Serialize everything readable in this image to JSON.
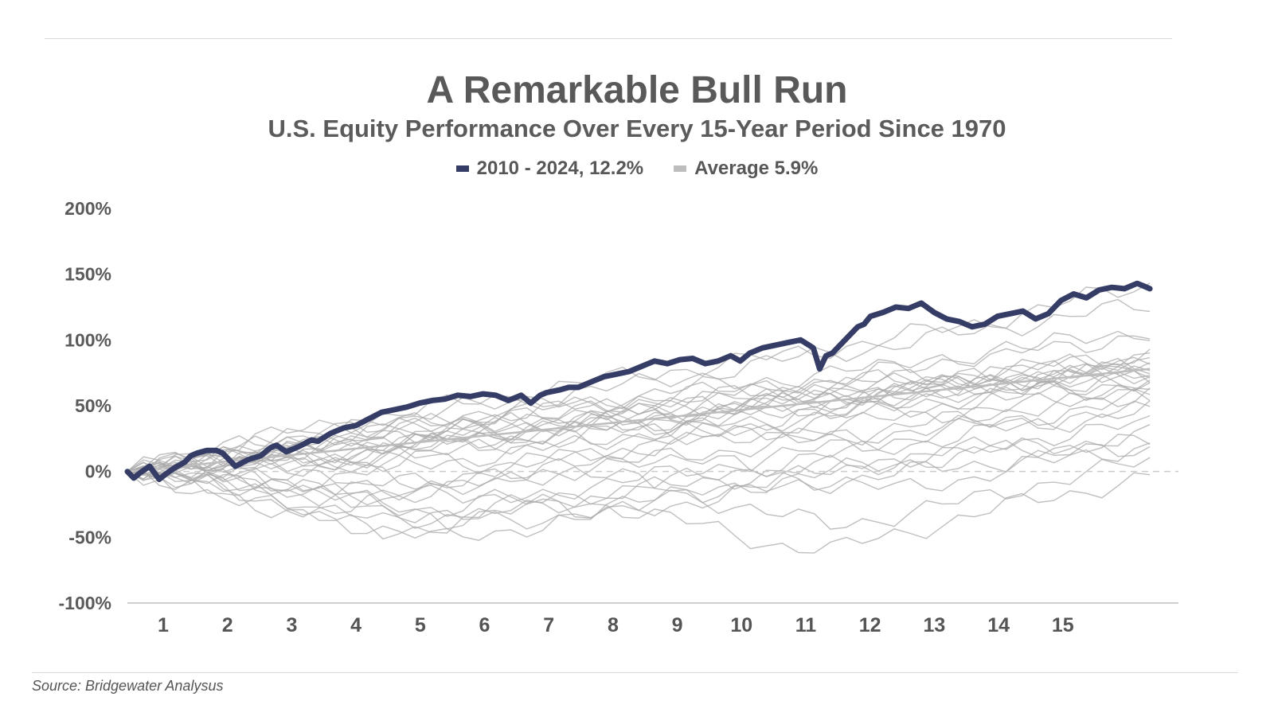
{
  "colors": {
    "highlight": "#353d66",
    "average": "#bdbdbd",
    "paths": "#a9a9a9",
    "axis": "#cfcfcf"
  },
  "footer": {
    "source": "Source: Bridgewater Analysus"
  },
  "chart_data": {
    "type": "line",
    "title": "A Remarkable Bull Run",
    "subtitle": "U.S. Equity Performance Over Every 15-Year Period Since 1970",
    "legend": [
      {
        "label": "2010 - 2024, 12.2%",
        "color": "#353d66"
      },
      {
        "label": "Average 5.9%",
        "color": "#bdbdbd"
      }
    ],
    "legend_position": "top-center",
    "ylim": [
      -100,
      200
    ],
    "yticks": [
      -100,
      -50,
      0,
      50,
      100,
      150,
      200
    ],
    "ytick_labels": [
      "-100%",
      "-50%",
      "0%",
      "50%",
      "100%",
      "150%",
      "200%"
    ],
    "xlim": [
      0,
      16.5
    ],
    "xticks": [
      1,
      2,
      3,
      4,
      5,
      6,
      7,
      8,
      9,
      10,
      11,
      12,
      13,
      14,
      15
    ],
    "xtick_labels": [
      "1",
      "2",
      "3",
      "4",
      "5",
      "6",
      "7",
      "8",
      "9",
      "10",
      11,
      "12",
      "13",
      "14",
      "15"
    ],
    "grid": false,
    "zero_line": "dashed",
    "highlight_series": {
      "name": "2010 - 2024, 12.2%",
      "x": [
        0,
        0.1,
        0.2,
        0.35,
        0.5,
        0.6,
        0.75,
        0.9,
        1.0,
        1.1,
        1.25,
        1.4,
        1.5,
        1.7,
        1.9,
        2.1,
        2.25,
        2.35,
        2.5,
        2.7,
        2.9,
        3.0,
        3.2,
        3.4,
        3.6,
        3.8,
        4.0,
        4.2,
        4.4,
        4.6,
        4.8,
        5.0,
        5.2,
        5.4,
        5.6,
        5.8,
        6.0,
        6.2,
        6.35,
        6.5,
        6.6,
        6.8,
        6.95,
        7.1,
        7.3,
        7.5,
        7.7,
        7.9,
        8.1,
        8.3,
        8.5,
        8.7,
        8.9,
        9.1,
        9.3,
        9.5,
        9.65,
        9.8,
        10.0,
        10.2,
        10.4,
        10.6,
        10.8,
        10.9,
        11.0,
        11.1,
        11.3,
        11.5,
        11.6,
        11.7,
        11.9,
        12.1,
        12.3,
        12.5,
        12.7,
        12.9,
        13.1,
        13.3,
        13.5,
        13.7,
        13.9,
        14.1,
        14.3,
        14.5,
        14.7,
        14.9,
        15.1,
        15.3,
        15.5,
        15.7,
        15.9,
        16.0,
        16.1
      ],
      "y": [
        0,
        -5,
        -1,
        4,
        -6,
        -2,
        3,
        7,
        12,
        14,
        16,
        16,
        14,
        4,
        9,
        12,
        18,
        20,
        15,
        19,
        24,
        23,
        29,
        33,
        35,
        40,
        45,
        47,
        49,
        52,
        54,
        55,
        58,
        57,
        59,
        58,
        54,
        58,
        52,
        58,
        60,
        62,
        64,
        64,
        68,
        72,
        74,
        76,
        80,
        84,
        82,
        85,
        86,
        82,
        84,
        88,
        84,
        90,
        94,
        96,
        98,
        100,
        94,
        78,
        88,
        90,
        100,
        110,
        112,
        118,
        121,
        125,
        124,
        128,
        121,
        116,
        114,
        110,
        112,
        118,
        120,
        122,
        116,
        120,
        130,
        135,
        132,
        138,
        140,
        139,
        143,
        141,
        139
      ]
    },
    "background_series_note": "",
    "background_series": [
      {
        "y": [
          0,
          6,
          14,
          20,
          24,
          28,
          34,
          40,
          44,
          50,
          54,
          60,
          64,
          70,
          72,
          76,
          80
        ]
      },
      {
        "y": [
          0,
          8,
          10,
          16,
          22,
          26,
          30,
          36,
          40,
          46,
          50,
          56,
          62,
          66,
          70,
          72,
          74
        ]
      },
      {
        "y": [
          0,
          4,
          8,
          10,
          14,
          20,
          26,
          30,
          34,
          38,
          42,
          48,
          52,
          58,
          62,
          66,
          70
        ]
      },
      {
        "y": [
          0,
          10,
          18,
          26,
          32,
          38,
          44,
          48,
          52,
          56,
          60,
          66,
          70,
          74,
          78,
          84,
          90
        ]
      },
      {
        "y": [
          0,
          -6,
          -12,
          -18,
          -10,
          -4,
          4,
          12,
          20,
          28,
          34,
          40,
          46,
          52,
          58,
          62,
          66
        ]
      },
      {
        "y": [
          0,
          -8,
          -20,
          -30,
          -38,
          -34,
          -26,
          -18,
          -12,
          -4,
          4,
          12,
          20,
          26,
          34,
          40,
          46
        ]
      },
      {
        "y": [
          0,
          2,
          -6,
          -14,
          -24,
          -30,
          -22,
          -12,
          -6,
          2,
          10,
          18,
          24,
          32,
          40,
          48,
          56
        ]
      },
      {
        "y": [
          0,
          12,
          20,
          30,
          38,
          46,
          52,
          60,
          66,
          74,
          82,
          90,
          96,
          104,
          112,
          120,
          126
        ]
      },
      {
        "y": [
          0,
          14,
          24,
          34,
          42,
          50,
          58,
          66,
          74,
          80,
          86,
          94,
          102,
          110,
          120,
          132,
          142
        ]
      },
      {
        "y": [
          0,
          6,
          2,
          8,
          16,
          24,
          32,
          38,
          42,
          50,
          58,
          62,
          66,
          72,
          78,
          82,
          88
        ]
      },
      {
        "y": [
          0,
          -4,
          -10,
          -6,
          2,
          8,
          14,
          20,
          28,
          34,
          38,
          44,
          50,
          56,
          60,
          64,
          70
        ]
      },
      {
        "y": [
          0,
          4,
          12,
          6,
          -4,
          -14,
          -22,
          -30,
          -24,
          -16,
          -8,
          0,
          6,
          12,
          18,
          22,
          28
        ]
      },
      {
        "y": [
          0,
          -10,
          -24,
          -36,
          -46,
          -40,
          -30,
          -22,
          -14,
          -8,
          -2,
          4,
          10,
          14,
          18,
          20,
          22
        ]
      },
      {
        "y": [
          0,
          -2,
          -8,
          -16,
          -20,
          -14,
          -6,
          2,
          -8,
          -20,
          -32,
          -40,
          -34,
          -24,
          -12,
          -2,
          8
        ]
      },
      {
        "y": [
          0,
          2,
          6,
          12,
          18,
          22,
          28,
          34,
          40,
          46,
          50,
          56,
          60,
          66,
          70,
          74,
          78
        ]
      },
      {
        "y": [
          0,
          8,
          16,
          22,
          30,
          36,
          40,
          44,
          50,
          56,
          62,
          70,
          78,
          86,
          94,
          100,
          108
        ]
      },
      {
        "y": [
          0,
          -6,
          -2,
          6,
          14,
          10,
          4,
          10,
          18,
          26,
          30,
          34,
          40,
          46,
          50,
          54,
          60
        ]
      },
      {
        "y": [
          0,
          4,
          -4,
          -14,
          -26,
          -36,
          -30,
          -22,
          -30,
          -42,
          -54,
          -60,
          -48,
          -36,
          -24,
          -14,
          -4
        ]
      },
      {
        "y": [
          0,
          10,
          16,
          24,
          28,
          34,
          40,
          46,
          48,
          52,
          56,
          58,
          62,
          64,
          66,
          68,
          72
        ]
      },
      {
        "y": [
          0,
          -4,
          -12,
          -20,
          -28,
          -34,
          -40,
          -32,
          -24,
          -16,
          -8,
          0,
          8,
          16,
          24,
          30,
          36
        ]
      },
      {
        "y": [
          0,
          6,
          10,
          4,
          8,
          14,
          20,
          26,
          32,
          28,
          22,
          26,
          32,
          40,
          48,
          54,
          60
        ]
      },
      {
        "y": [
          0,
          2,
          4,
          8,
          12,
          18,
          24,
          30,
          36,
          42,
          48,
          54,
          60,
          64,
          68,
          72,
          76
        ]
      },
      {
        "y": [
          0,
          -8,
          -18,
          -28,
          -20,
          -12,
          -4,
          4,
          12,
          8,
          0,
          -8,
          -14,
          -6,
          4,
          12,
          20
        ]
      },
      {
        "y": [
          0,
          12,
          22,
          30,
          36,
          42,
          48,
          52,
          58,
          64,
          70,
          74,
          80,
          86,
          92,
          98,
          104
        ]
      },
      {
        "y": [
          0,
          4,
          10,
          18,
          26,
          32,
          36,
          30,
          24,
          30,
          38,
          46,
          54,
          62,
          70,
          78,
          86
        ]
      },
      {
        "y": [
          0,
          -2,
          2,
          -6,
          -14,
          -10,
          -4,
          2,
          8,
          14,
          20,
          26,
          30,
          34,
          38,
          42,
          46
        ]
      },
      {
        "y": [
          0,
          8,
          12,
          18,
          24,
          30,
          34,
          40,
          44,
          48,
          52,
          58,
          62,
          66,
          70,
          76,
          80
        ]
      },
      {
        "y": [
          0,
          -12,
          -24,
          -34,
          -44,
          -52,
          -44,
          -36,
          -28,
          -22,
          -14,
          -8,
          -2,
          4,
          10,
          14,
          18
        ]
      },
      {
        "y": [
          0,
          4,
          8,
          14,
          20,
          26,
          30,
          34,
          38,
          42,
          46,
          52,
          58,
          64,
          70,
          74,
          76
        ]
      },
      {
        "y": [
          0,
          6,
          14,
          22,
          30,
          38,
          44,
          50,
          56,
          60,
          64,
          68,
          70,
          72,
          76,
          80,
          84
        ]
      }
    ],
    "average_series": {
      "name": "Average 5.9%",
      "x": [
        0,
        16.1
      ],
      "y": [
        0,
        78
      ]
    }
  }
}
